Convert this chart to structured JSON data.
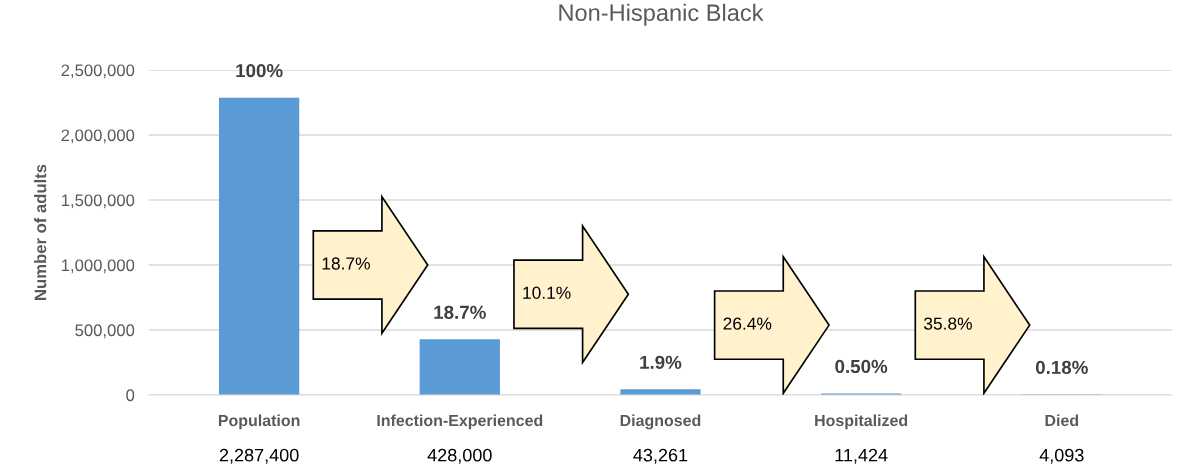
{
  "chart_data": {
    "type": "bar",
    "title": "Non-Hispanic Black",
    "ylabel": "Number of adults",
    "categories": [
      "Population",
      "Infection-Experienced",
      "Diagnosed",
      "Hospitalized",
      "Died"
    ],
    "values": [
      2287400,
      428000,
      43261,
      11424,
      4093
    ],
    "color": "#5b9bd5",
    "ylim": [
      0,
      2500000
    ],
    "yticks": [
      {
        "value": 0,
        "label": "0"
      },
      {
        "value": 500000,
        "label": "500,000"
      },
      {
        "value": 1000000,
        "label": "1,000,000"
      },
      {
        "value": 1500000,
        "label": "1,500,000"
      },
      {
        "value": 2000000,
        "label": "2,000,000"
      },
      {
        "value": 2500000,
        "label": "2,500,000"
      }
    ],
    "grid": "y",
    "value_labels": [
      "2,287,400",
      "428,000",
      "43,261",
      "11,424",
      "4,093"
    ],
    "annotations": [
      {
        "text": "100%",
        "x": "Population",
        "y": 2287400
      },
      {
        "text": "18.7%",
        "x": "Infection-Experienced",
        "y": 428000
      },
      {
        "text": "1.9%",
        "x": "Diagnosed",
        "y": 43261
      },
      {
        "text": "0.50%",
        "x": "Hospitalized",
        "y": 11424
      },
      {
        "text": "0.18%",
        "x": "Died",
        "y": 4093
      },
      "18.7%",
      "10.1%",
      "26.4%",
      "35.8%"
    ]
  }
}
